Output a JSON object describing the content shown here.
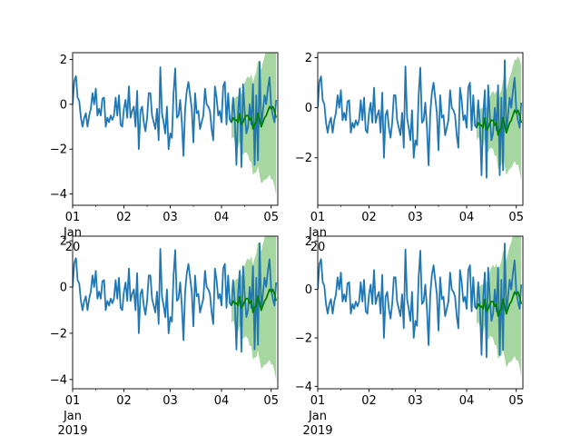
{
  "chart_data": [
    {
      "type": "line",
      "title": "",
      "xlabel": "",
      "ylabel": "",
      "ylim": [
        -4.5,
        2.3
      ],
      "xlim": [
        "2019-01-01",
        "2019-05-05"
      ],
      "xticks": [
        "01",
        "02",
        "03",
        "04",
        "05"
      ],
      "xtick_sub": [
        "Jan",
        "20"
      ],
      "yticks": [
        "2",
        "0",
        "−2",
        "−4"
      ],
      "ytick_values": [
        2,
        0,
        -2,
        -4
      ],
      "fill_mult": 3.0,
      "colors": {
        "observed": "#1f77b4",
        "forecast": "#008000",
        "band": "#98d08f"
      },
      "grid": false,
      "series": [
        {
          "values": [
            0.0,
            1.05,
            1.25,
            0.3,
            0.15,
            -0.6,
            -1.0,
            -0.6,
            -0.4,
            -1.0,
            -0.5,
            -0.2,
            0.5,
            0.0,
            0.7,
            -0.5,
            -0.2,
            -0.5,
            0.25,
            0.3,
            -1.0,
            -0.6,
            -0.8,
            -0.5,
            -0.7,
            -0.5,
            0.3,
            -0.5,
            0.4,
            -0.9,
            -1.0,
            -0.2,
            0.2,
            -0.6,
            0.8,
            -0.6,
            -0.3,
            -0.1,
            -1.0,
            0.6,
            -2.0,
            -0.3,
            -0.1,
            -0.8,
            -1.2,
            -0.6,
            0.5,
            0.5,
            -0.5,
            -0.8,
            -1.1,
            -0.2,
            -1.6,
            1.65,
            -0.4,
            -0.8,
            -1.3,
            -0.1,
            -2.0,
            -1.3,
            -1.5,
            0.5,
            1.6,
            -0.6,
            -0.5,
            0.2,
            -0.8,
            -2.3,
            -0.2,
            0.6,
            1.0,
            0.4,
            -0.2,
            -1.7,
            0.5,
            -0.4,
            -0.3,
            -1.1,
            -0.8,
            -0.5,
            0.7,
            0.0,
            -0.1,
            -0.3,
            -1.1,
            -1.6,
            0.8,
            0.3,
            -0.5,
            -0.3,
            -0.8,
            0.8,
            1.0,
            -0.9,
            0.5,
            -0.7,
            -0.8,
            0.3,
            -0.6,
            -2.7,
            -0.3,
            0.7,
            -2.8,
            0.9,
            -0.3,
            -1.3,
            -1.0,
            0.0,
            -0.9,
            0.9,
            -2.7,
            0.4,
            -2.5,
            1.9,
            -1.0,
            -0.3,
            0.4,
            0.0,
            0.7,
            1.2,
            -0.1,
            -0.5,
            -0.8,
            0.2
          ]
        },
        {
          "values": [
            -0.8,
            -0.6,
            -0.7,
            -0.7,
            -0.8,
            -0.4,
            -0.9,
            -0.8,
            -0.6,
            -0.5,
            -0.5,
            -0.7,
            -0.6,
            -1.1,
            -0.9,
            -0.8,
            -0.4,
            -0.7,
            -1.0,
            -0.8,
            -0.6,
            -0.5,
            -0.3,
            -0.1,
            -0.2,
            -0.1,
            -0.3,
            -0.6
          ]
        }
      ]
    },
    {
      "type": "line",
      "title": "",
      "xlabel": "",
      "ylabel": "",
      "ylim": [
        -3.9,
        2.2
      ],
      "xlim": [
        "2019-01-01",
        "2019-05-05"
      ],
      "xticks": [
        "01",
        "02",
        "03",
        "04",
        "05"
      ],
      "xtick_sub": [
        "Jan",
        "20"
      ],
      "yticks": [
        "2",
        "0",
        "−2"
      ],
      "ytick_values": [
        2,
        0,
        -2
      ],
      "fill_mult": 2.0,
      "colors": {
        "observed": "#1f77b4",
        "forecast": "#008000",
        "band": "#98d08f"
      },
      "grid": false,
      "series": [
        {
          "values": [
            0.0,
            1.05,
            1.25,
            0.3,
            0.15,
            -0.6,
            -1.0,
            -0.6,
            -0.4,
            -1.0,
            -0.5,
            -0.2,
            0.5,
            0.0,
            0.7,
            -0.5,
            -0.2,
            -0.5,
            0.25,
            0.3,
            -1.0,
            -0.6,
            -0.8,
            -0.5,
            -0.7,
            -0.5,
            0.3,
            -0.5,
            0.4,
            -0.9,
            -1.0,
            -0.2,
            0.2,
            -0.6,
            0.8,
            -0.6,
            -0.3,
            -0.1,
            -1.0,
            0.6,
            -2.0,
            -0.3,
            -0.1,
            -0.8,
            -1.2,
            -0.6,
            0.5,
            0.5,
            -0.5,
            -0.8,
            -1.1,
            -0.2,
            -1.6,
            1.65,
            -0.4,
            -0.8,
            -1.3,
            -0.1,
            -2.0,
            -1.3,
            -1.5,
            0.5,
            1.6,
            -0.6,
            -0.5,
            0.2,
            -0.8,
            -2.3,
            -0.2,
            0.6,
            1.0,
            0.4,
            -0.2,
            -1.7,
            0.5,
            -0.4,
            -0.3,
            -1.1,
            -0.8,
            -0.5,
            0.7,
            0.0,
            -0.1,
            -0.3,
            -1.1,
            -1.6,
            0.8,
            0.3,
            -0.5,
            -0.3,
            -0.8,
            0.8,
            1.0,
            -0.9,
            0.5,
            -0.7,
            -0.8,
            0.3,
            -0.6,
            -2.7,
            -0.3,
            0.7,
            -2.8,
            0.9,
            -0.3,
            -1.3,
            -1.0,
            0.0,
            -0.9,
            0.9,
            -2.7,
            0.4,
            -2.5,
            1.9,
            -1.0,
            -0.3,
            0.4,
            0.0,
            0.7,
            1.2,
            -0.1,
            -0.5,
            -0.8,
            0.2
          ]
        },
        {
          "values": [
            -0.8,
            -0.6,
            -0.7,
            -0.7,
            -0.8,
            -0.4,
            -0.9,
            -0.8,
            -0.6,
            -0.5,
            -0.5,
            -0.7,
            -0.6,
            -1.1,
            -0.9,
            -0.8,
            -0.4,
            -0.7,
            -1.0,
            -0.8,
            -0.6,
            -0.5,
            -0.3,
            -0.1,
            -0.2,
            -0.1,
            -0.3,
            -0.6
          ]
        }
      ]
    },
    {
      "type": "line",
      "title": "",
      "xlabel": "",
      "ylabel": "",
      "ylim": [
        -4.4,
        2.2
      ],
      "xlim": [
        "2019-01-01",
        "2019-05-05"
      ],
      "xticks": [
        "01",
        "02",
        "03",
        "04",
        "05"
      ],
      "xtick_sub": [
        "Jan",
        "2019"
      ],
      "yticks": [
        "2",
        "0",
        "−2",
        "−4"
      ],
      "ytick_values": [
        2,
        0,
        -2,
        -4
      ],
      "fill_mult": 3.0,
      "colors": {
        "observed": "#1f77b4",
        "forecast": "#008000",
        "band": "#98d08f"
      },
      "grid": false,
      "series": [
        {
          "values": [
            0.0,
            1.05,
            1.25,
            0.3,
            0.15,
            -0.6,
            -1.0,
            -0.6,
            -0.4,
            -1.0,
            -0.5,
            -0.2,
            0.5,
            0.0,
            0.7,
            -0.5,
            -0.2,
            -0.5,
            0.25,
            0.3,
            -1.0,
            -0.6,
            -0.8,
            -0.5,
            -0.7,
            -0.5,
            0.3,
            -0.5,
            0.4,
            -0.9,
            -1.0,
            -0.2,
            0.2,
            -0.6,
            0.8,
            -0.6,
            -0.3,
            -0.1,
            -1.0,
            0.6,
            -2.0,
            -0.3,
            -0.1,
            -0.8,
            -1.2,
            -0.6,
            0.5,
            0.5,
            -0.5,
            -0.8,
            -1.1,
            -0.2,
            -1.6,
            1.65,
            -0.4,
            -0.8,
            -1.3,
            -0.1,
            -2.0,
            -1.3,
            -1.5,
            0.5,
            1.6,
            -0.6,
            -0.5,
            0.2,
            -0.8,
            -2.3,
            -0.2,
            0.6,
            1.0,
            0.4,
            -0.2,
            -1.7,
            0.5,
            -0.4,
            -0.3,
            -1.1,
            -0.8,
            -0.5,
            0.7,
            0.0,
            -0.1,
            -0.3,
            -1.1,
            -1.6,
            0.8,
            0.3,
            -0.5,
            -0.3,
            -0.8,
            0.8,
            1.0,
            -0.9,
            0.5,
            -0.7,
            -0.8,
            0.3,
            -0.6,
            -2.7,
            -0.3,
            0.7,
            -2.8,
            0.9,
            -0.3,
            -1.3,
            -1.0,
            0.0,
            -0.9,
            0.9,
            -2.7,
            0.4,
            -2.5,
            1.9,
            -1.0,
            -0.3,
            0.4,
            0.0,
            0.7,
            1.2,
            -0.1,
            -0.5,
            -0.8,
            0.2
          ]
        },
        {
          "values": [
            -0.8,
            -0.6,
            -0.7,
            -0.7,
            -0.8,
            -0.4,
            -0.9,
            -0.8,
            -0.6,
            -0.5,
            -0.5,
            -0.7,
            -0.6,
            -1.1,
            -0.9,
            -0.8,
            -0.4,
            -0.7,
            -1.0,
            -0.8,
            -0.6,
            -0.5,
            -0.3,
            -0.1,
            -0.2,
            -0.1,
            -0.3,
            -0.6
          ]
        }
      ]
    },
    {
      "type": "line",
      "title": "",
      "xlabel": "",
      "ylabel": "",
      "ylim": [
        -4.1,
        2.2
      ],
      "xlim": [
        "2019-01-01",
        "2019-05-05"
      ],
      "xticks": [
        "01",
        "02",
        "03",
        "04",
        "05"
      ],
      "xtick_sub": [
        "Jan",
        "2019"
      ],
      "yticks": [
        "2",
        "0",
        "−2",
        "−4"
      ],
      "ytick_values": [
        2,
        0,
        -2,
        -4
      ],
      "fill_mult": 2.6,
      "colors": {
        "observed": "#1f77b4",
        "forecast": "#008000",
        "band": "#98d08f"
      },
      "grid": false,
      "series": [
        {
          "values": [
            0.0,
            1.05,
            1.25,
            0.3,
            0.15,
            -0.6,
            -1.0,
            -0.6,
            -0.4,
            -1.0,
            -0.5,
            -0.2,
            0.5,
            0.0,
            0.7,
            -0.5,
            -0.2,
            -0.5,
            0.25,
            0.3,
            -1.0,
            -0.6,
            -0.8,
            -0.5,
            -0.7,
            -0.5,
            0.3,
            -0.5,
            0.4,
            -0.9,
            -1.0,
            -0.2,
            0.2,
            -0.6,
            0.8,
            -0.6,
            -0.3,
            -0.1,
            -1.0,
            0.6,
            -2.0,
            -0.3,
            -0.1,
            -0.8,
            -1.2,
            -0.6,
            0.5,
            0.5,
            -0.5,
            -0.8,
            -1.1,
            -0.2,
            -1.6,
            1.65,
            -0.4,
            -0.8,
            -1.3,
            -0.1,
            -2.0,
            -1.3,
            -1.5,
            0.5,
            1.6,
            -0.6,
            -0.5,
            0.2,
            -0.8,
            -2.3,
            -0.2,
            0.6,
            1.0,
            0.4,
            -0.2,
            -1.7,
            0.5,
            -0.4,
            -0.3,
            -1.1,
            -0.8,
            -0.5,
            0.7,
            0.0,
            -0.1,
            -0.3,
            -1.1,
            -1.6,
            0.8,
            0.3,
            -0.5,
            -0.3,
            -0.8,
            0.8,
            1.0,
            -0.9,
            0.5,
            -0.7,
            -0.8,
            0.3,
            -0.6,
            -2.7,
            -0.3,
            0.7,
            -2.8,
            0.9,
            -0.3,
            -1.3,
            -1.0,
            0.0,
            -0.9,
            0.9,
            -2.7,
            0.4,
            -2.5,
            1.9,
            -1.0,
            -0.3,
            0.4,
            0.0,
            0.7,
            1.2,
            -0.1,
            -0.5,
            -0.8,
            0.2
          ]
        },
        {
          "values": [
            -0.8,
            -0.6,
            -0.7,
            -0.7,
            -0.8,
            -0.4,
            -0.9,
            -0.8,
            -0.6,
            -0.5,
            -0.5,
            -0.7,
            -0.6,
            -1.1,
            -0.9,
            -0.8,
            -0.4,
            -0.7,
            -1.0,
            -0.8,
            -0.6,
            -0.5,
            -0.3,
            -0.1,
            -0.2,
            -0.1,
            -0.3,
            -0.6
          ]
        }
      ]
    }
  ]
}
